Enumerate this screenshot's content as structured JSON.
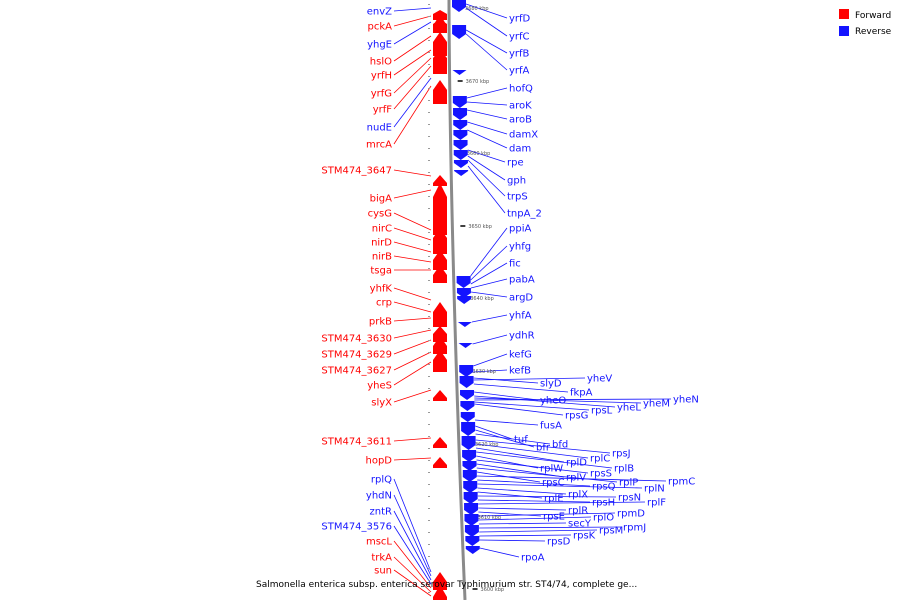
{
  "colors": {
    "forward": "#ff0000",
    "reverse": "#1414ff",
    "backbone": "#8a8a8a",
    "text": "#000000"
  },
  "legend": {
    "forward": "Forward",
    "reverse": "Reverse"
  },
  "caption": "Salmonella enterica subsp. enterica serovar Typhimurium str. ST4/74, complete ge...",
  "scale_ticks": [
    "3680 kbp",
    "3670 kbp",
    "3660 kbp",
    "3650 kbp",
    "3640 kbp",
    "3630 kbp",
    "3620 kbp",
    "3610 kbp",
    "3600 kbp"
  ],
  "forward_labels": [
    "envZ",
    "pckA",
    "yhgE",
    "hslO",
    "yrfH",
    "yrfG",
    "yrfF",
    "nudE",
    "mrcA",
    "STM474_3647",
    "bigA",
    "cysG",
    "nirC",
    "nirD",
    "nirB",
    "tsga",
    "yhfK",
    "crp",
    "prkB",
    "STM474_3630",
    "STM474_3629",
    "STM474_3627",
    "yheS",
    "slyX",
    "STM474_3611",
    "hopD",
    "rplQ",
    "yhdN",
    "zntR",
    "STM474_3576",
    "mscL",
    "trkA",
    "sun"
  ],
  "reverse_labels": [
    "yrfD",
    "yrfC",
    "yrfB",
    "yrfA",
    "hofQ",
    "aroK",
    "aroB",
    "damX",
    "dam",
    "rpe",
    "gph",
    "trpS",
    "tnpA_2",
    "ppiA",
    "yhfg",
    "fic",
    "pabA",
    "argD",
    "yhfA",
    "ydhR",
    "kefG",
    "kefB",
    "slyD",
    "yheV",
    "fkpA",
    "yheO",
    "yheL",
    "yheM",
    "yheN",
    "rpsL",
    "rpsG",
    "fusA",
    "tuf",
    "bfr",
    "bfd",
    "rpsJ",
    "rplC",
    "rplD",
    "rplB",
    "rplW",
    "rpsS",
    "rplV",
    "rplP",
    "rpsC",
    "rpmC",
    "rpsQ",
    "rplN",
    "rplX",
    "rplE",
    "rpsN",
    "rpsH",
    "rplF",
    "rplR",
    "rpsE",
    "rpmD",
    "rplO",
    "secY",
    "rpmJ",
    "rpsM",
    "rpsK",
    "rpsD",
    "rpoA"
  ]
}
